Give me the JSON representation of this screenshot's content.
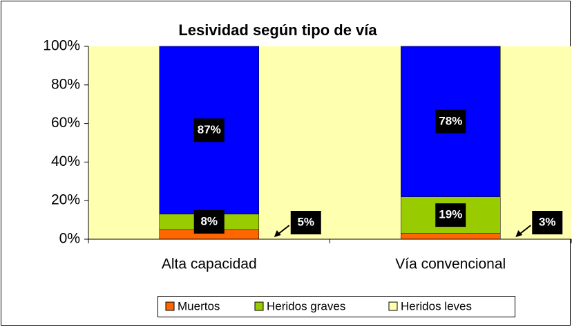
{
  "chart_data": {
    "type": "stacked_bar",
    "title": "Lesividad según tipo de vía",
    "categories": [
      "Alta capacidad",
      "Vía convencional"
    ],
    "series": [
      {
        "name": "Muertos",
        "color": "#ff6600",
        "legend_color": "#ff6600",
        "values": [
          5,
          3
        ],
        "value_labels": [
          "5%",
          "3%"
        ]
      },
      {
        "name": "Heridos graves",
        "color": "#99cc00",
        "legend_color": "#99cc00",
        "values": [
          8,
          19
        ],
        "value_labels": [
          "8%",
          "19%"
        ]
      },
      {
        "name": "Heridos leves",
        "color": "#0000ff",
        "legend_color": "#ffffb0",
        "values": [
          87,
          78
        ],
        "value_labels": [
          "87%",
          "78%"
        ]
      }
    ],
    "ylim": [
      0,
      100
    ],
    "yticks": [
      {
        "value": 0,
        "label": "0%"
      },
      {
        "value": 20,
        "label": "20%"
      },
      {
        "value": 40,
        "label": "40%"
      },
      {
        "value": 60,
        "label": "60%"
      },
      {
        "value": 80,
        "label": "80%"
      },
      {
        "value": 100,
        "label": "100%"
      }
    ],
    "plot_background": "#ffffb0",
    "legend": "bottom"
  }
}
